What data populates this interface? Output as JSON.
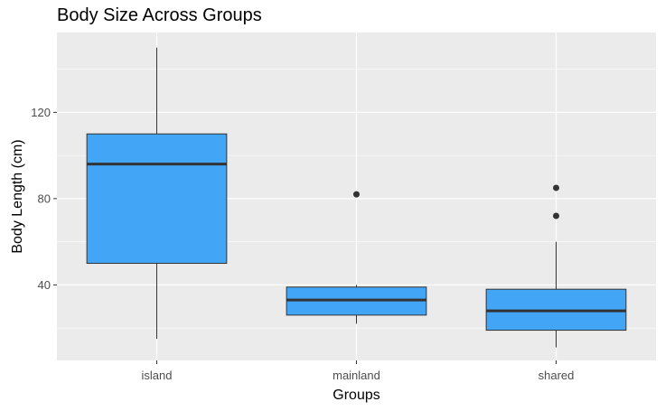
{
  "chart_data": {
    "type": "box",
    "title": "Body Size Across Groups",
    "xlabel": "Groups",
    "ylabel": "Body Length (cm)",
    "categories": [
      "island",
      "mainland",
      "shared"
    ],
    "yticks": [
      40,
      80,
      120
    ],
    "ylim": [
      5,
      157
    ],
    "grid": true,
    "box_color": "#42A5F5",
    "panel_color": "#EBEBEB",
    "boxes": [
      {
        "group": "island",
        "min": 15,
        "q1": 50,
        "median": 96,
        "q3": 110,
        "max": 150,
        "outliers": []
      },
      {
        "group": "mainland",
        "min": 22,
        "q1": 26,
        "median": 33,
        "q3": 39,
        "max": 40,
        "outliers": [
          82
        ]
      },
      {
        "group": "shared",
        "min": 11,
        "q1": 19,
        "median": 28,
        "q3": 38,
        "max": 60,
        "outliers": [
          72,
          85
        ]
      }
    ]
  }
}
